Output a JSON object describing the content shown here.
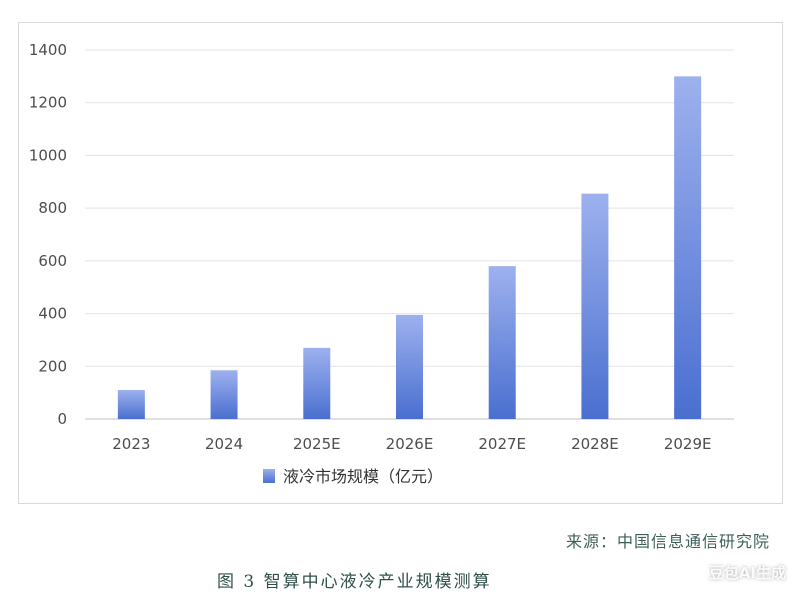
{
  "chart_data": {
    "type": "bar",
    "categories": [
      "2023",
      "2024",
      "2025E",
      "2026E",
      "2027E",
      "2028E",
      "2029E"
    ],
    "series": [
      {
        "name": "液冷市场规模（亿元）",
        "values": [
          110,
          185,
          270,
          395,
          580,
          855,
          1300
        ]
      }
    ],
    "title": "",
    "xlabel": "",
    "ylabel": "",
    "ylim": [
      0,
      1400
    ],
    "yticks": [
      0,
      200,
      400,
      600,
      800,
      1000,
      1200,
      1400
    ],
    "grid": true,
    "legend_position": "bottom-center",
    "bar_color_top": "#9db1ee",
    "bar_color_bottom": "#4a6fd0"
  },
  "source": "来源：中国信息通信研究院",
  "caption": "图 3 智算中心液冷产业规模测算",
  "watermark": "豆包AI生成"
}
